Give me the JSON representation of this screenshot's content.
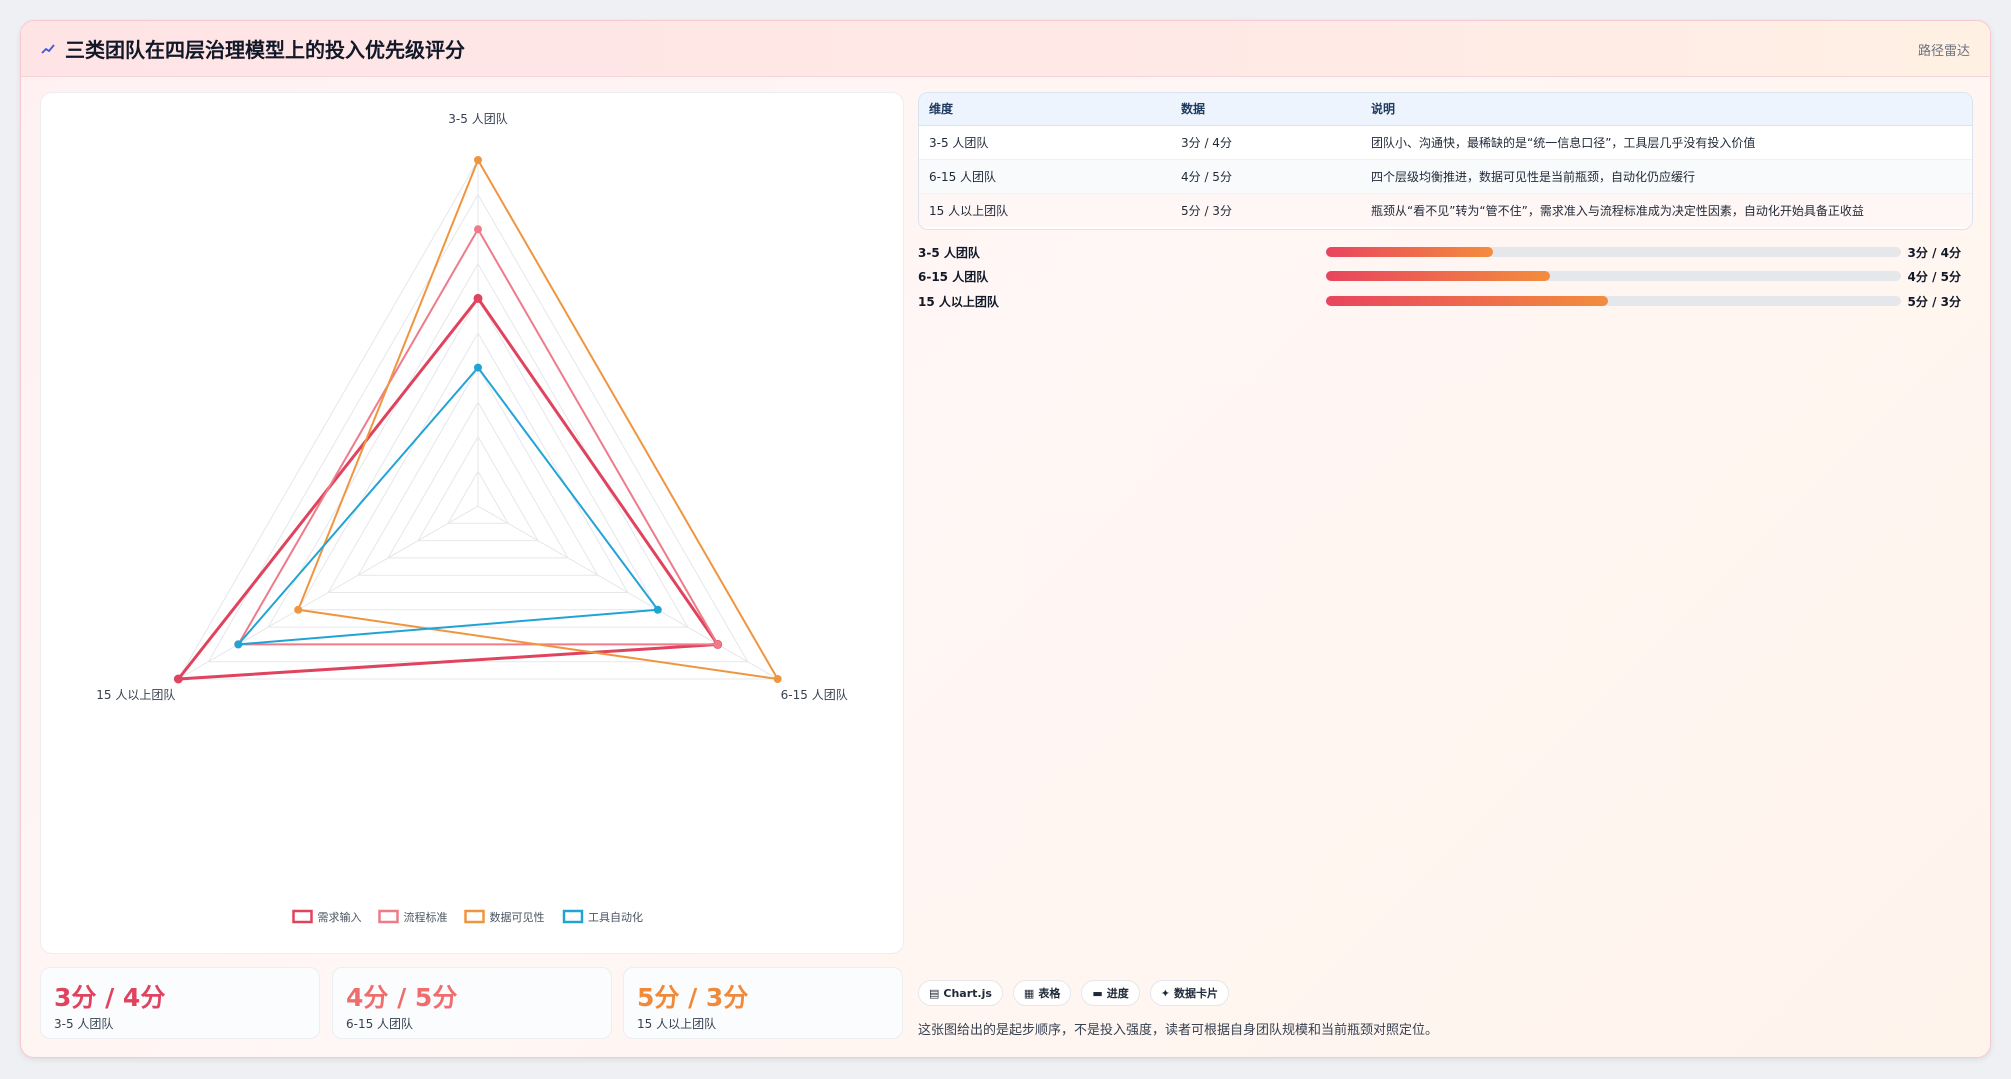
{
  "header": {
    "title": "三类团队在四层治理模型上的投入优先级评分",
    "tag": "路径雷达",
    "icon": "chart-line-icon"
  },
  "chart_data": {
    "type": "radar",
    "axes": [
      "3-5 人团队",
      "6-15 人团队",
      "15 人以上团队"
    ],
    "range": [
      0,
      5
    ],
    "rings": 10,
    "grid": true,
    "legend_position": "bottom",
    "series": [
      {
        "name": "需求输入",
        "color": "#e0435e",
        "values": [
          3,
          4,
          5
        ]
      },
      {
        "name": "流程标准",
        "color": "#ee7b8a",
        "values": [
          4,
          4,
          4
        ]
      },
      {
        "name": "数据可见性",
        "color": "#f0953f",
        "values": [
          5,
          5,
          3
        ]
      },
      {
        "name": "工具自动化",
        "color": "#22a3d6",
        "values": [
          2,
          3,
          4
        ]
      }
    ]
  },
  "stats": [
    {
      "value": "3分 / 4分",
      "label": "3-5 人团队",
      "color": "#e0435e"
    },
    {
      "value": "4分 / 5分",
      "label": "6-15 人团队",
      "color": "#ef6d6d"
    },
    {
      "value": "5分 / 3分",
      "label": "15 人以上团队",
      "color": "#f0893a"
    }
  ],
  "table": {
    "headers": [
      "维度",
      "数据",
      "说明"
    ],
    "rows": [
      [
        "3-5 人团队",
        "3分 / 4分",
        "团队小、沟通快，最稀缺的是“统一信息口径”，工具层几乎没有投入价值"
      ],
      [
        "6-15 人团队",
        "4分 / 5分",
        "四个层级均衡推进，数据可见性是当前瓶颈，自动化仍应缓行"
      ],
      [
        "15 人以上团队",
        "5分 / 3分",
        "瓶颈从“看不见”转为“管不住”，需求准入与流程标准成为决定性因素，自动化开始具备正收益"
      ]
    ]
  },
  "progress": [
    {
      "label": "3-5 人团队",
      "value": "3分 / 4分",
      "fraction": 0.29
    },
    {
      "label": "6-15 人团队",
      "value": "4分 / 5分",
      "fraction": 0.39
    },
    {
      "label": "15 人以上团队",
      "value": "5分 / 3分",
      "fraction": 0.49
    }
  ],
  "chips": [
    {
      "icon": "chart-icon",
      "label": "Chart.js"
    },
    {
      "icon": "table-icon",
      "label": "表格"
    },
    {
      "icon": "progress-icon",
      "label": "进度"
    },
    {
      "icon": "sparkle-icon",
      "label": "数据卡片"
    }
  ],
  "footnote": "这张图给出的是起步顺序，不是投入强度，读者可根据自身团队规模和当前瓶颈对照定位。"
}
